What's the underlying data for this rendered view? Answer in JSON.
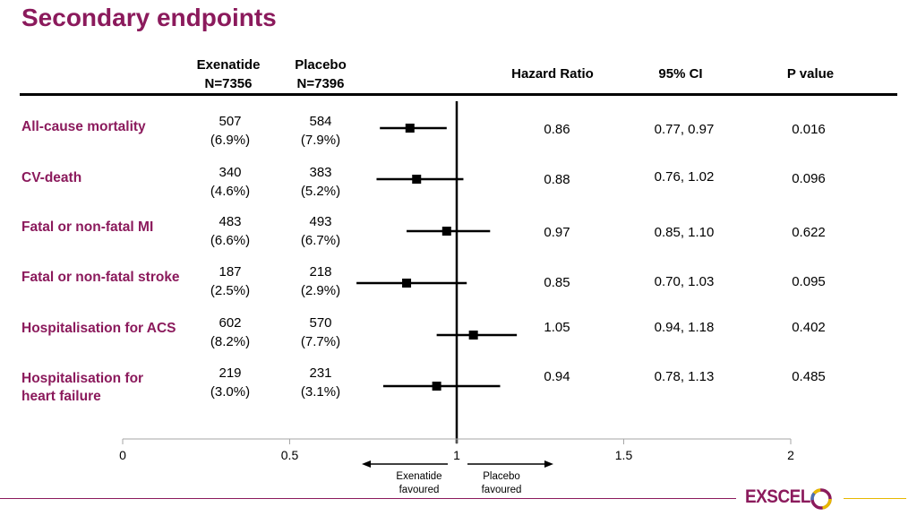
{
  "title": "Secondary endpoints",
  "headers": {
    "exenatide": [
      "Exenatide",
      "N=7356"
    ],
    "placebo": [
      "Placebo",
      "N=7396"
    ],
    "hr": "Hazard Ratio",
    "ci": "95% CI",
    "p": "P value"
  },
  "favoured": {
    "left": [
      "Exenatide",
      "favoured"
    ],
    "right": [
      "Placebo",
      "favoured"
    ]
  },
  "brand": "EXSCEL",
  "colors": {
    "accent": "#8b1a5c",
    "brand_yellow": "#e7b800",
    "marker": "#000000"
  },
  "chart_data": {
    "type": "forest",
    "xlim": [
      0,
      2
    ],
    "xticks": [
      "0",
      "0.5",
      "1",
      "1.5",
      "2"
    ],
    "reference_line": 1,
    "rows": [
      {
        "label": [
          "All-cause mortality"
        ],
        "exenatide": [
          "507",
          "(6.9%)"
        ],
        "placebo": [
          "584",
          "(7.9%)"
        ],
        "hr": 0.86,
        "ci_low": 0.77,
        "ci_high": 0.97,
        "hr_text": "0.86",
        "ci_text": "0.77, 0.97",
        "p_text": "0.016"
      },
      {
        "label": [
          "CV-death"
        ],
        "exenatide": [
          "340",
          "(4.6%)"
        ],
        "placebo": [
          "383",
          "(5.2%)"
        ],
        "hr": 0.88,
        "ci_low": 0.76,
        "ci_high": 1.02,
        "hr_text": "0.88",
        "ci_text": "0.76, 1.02",
        "p_text": "0.096"
      },
      {
        "label": [
          "Fatal or non-fatal MI"
        ],
        "exenatide": [
          "483",
          "(6.6%)"
        ],
        "placebo": [
          "493",
          "(6.7%)"
        ],
        "hr": 0.97,
        "ci_low": 0.85,
        "ci_high": 1.1,
        "hr_text": "0.97",
        "ci_text": "0.85, 1.10",
        "p_text": "0.622"
      },
      {
        "label": [
          "Fatal or non-fatal stroke"
        ],
        "exenatide": [
          "187",
          "(2.5%)"
        ],
        "placebo": [
          "218",
          "(2.9%)"
        ],
        "hr": 0.85,
        "ci_low": 0.7,
        "ci_high": 1.03,
        "hr_text": "0.85",
        "ci_text": "0.70, 1.03",
        "p_text": "0.095"
      },
      {
        "label": [
          "Hospitalisation for ACS"
        ],
        "exenatide": [
          "602",
          "(8.2%)"
        ],
        "placebo": [
          "570",
          "(7.7%)"
        ],
        "hr": 1.05,
        "ci_low": 0.94,
        "ci_high": 1.18,
        "hr_text": "1.05",
        "ci_text": "0.94, 1.18",
        "p_text": "0.402"
      },
      {
        "label": [
          "Hospitalisation for",
          "heart failure"
        ],
        "exenatide": [
          "219",
          "(3.0%)"
        ],
        "placebo": [
          "231",
          "(3.1%)"
        ],
        "hr": 0.94,
        "ci_low": 0.78,
        "ci_high": 1.13,
        "hr_text": "0.94",
        "ci_text": "0.78, 1.13",
        "p_text": "0.485"
      }
    ]
  }
}
